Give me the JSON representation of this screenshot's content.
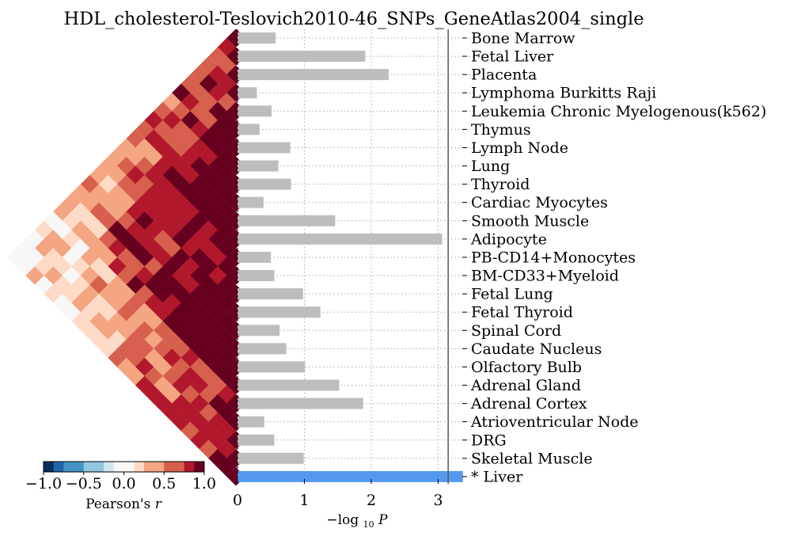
{
  "chart_data": [
    {
      "type": "bar",
      "orientation": "horizontal",
      "title": "HDL_cholesterol-Teslovich2010-46_SNPs_GeneAtlas2004_single",
      "xlabel": "−log",
      "xlabel_sub": "10",
      "xlabel_var": "P",
      "xlim": [
        0,
        3.4
      ],
      "xticks": [
        0,
        1,
        2,
        3
      ],
      "threshold": 3.15,
      "grid": "dotted vertical",
      "categories": [
        "Bone Marrow",
        "Fetal Liver",
        "Placenta",
        "Lymphoma Burkitts Raji",
        "Leukemia Chronic Myelogenous(k562)",
        "Thymus",
        "Lymph Node",
        "Lung",
        "Thyroid",
        "Cardiac Myocytes",
        "Smooth Muscle",
        "Adipocyte",
        "PB-CD14+Monocytes",
        "BM-CD33+Myeloid",
        "Fetal Lung",
        "Fetal Thyroid",
        "Spinal Cord",
        "Caudate Nucleus",
        "Olfactory Bulb",
        "Adrenal Gland",
        "Adrenal Cortex",
        "Atrioventricular Node",
        "DRG",
        "Skeletal Muscle",
        "* Liver"
      ],
      "values": [
        0.57,
        1.91,
        2.26,
        0.29,
        0.51,
        0.33,
        0.79,
        0.61,
        0.8,
        0.39,
        1.46,
        3.06,
        0.5,
        0.55,
        0.98,
        1.24,
        0.63,
        0.73,
        1.01,
        1.52,
        1.88,
        0.4,
        0.55,
        0.99,
        3.37
      ],
      "highlight": "* Liver",
      "bar_color": "#bdbdbd",
      "highlight_color": "#5599ee"
    },
    {
      "type": "heatmap",
      "shape": "triangular correlation matrix, rotated 45 degrees",
      "colorbar_label": "Pearson's",
      "colorbar_label_var": "r",
      "colorbar_ticks": [
        "−1.0",
        "−0.5",
        "0.0",
        "0.5",
        "1.0"
      ],
      "colorbar_range": [
        -1,
        1
      ],
      "colors": [
        "#053061",
        "#2166ac",
        "#4393c3",
        "#92c5de",
        "#d1e5f0",
        "#f7f7f7",
        "#fddbc7",
        "#f4a582",
        "#d6604d",
        "#b2182b",
        "#67001f"
      ]
    }
  ]
}
